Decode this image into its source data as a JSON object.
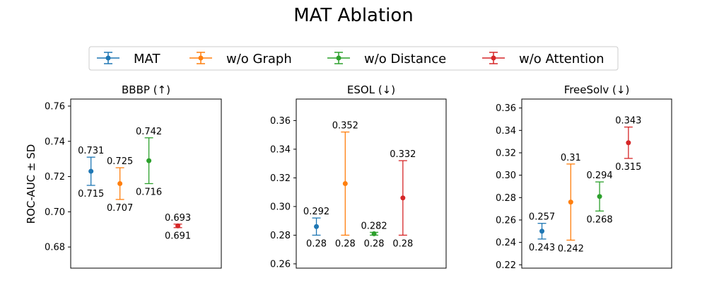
{
  "figure_title": "MAT Ablation",
  "ylabel": "ROC-AUC ± SD",
  "legend": [
    {
      "name": "MAT",
      "color": "#1f77b4"
    },
    {
      "name": "w/o Graph",
      "color": "#ff7f0e"
    },
    {
      "name": "w/o Distance",
      "color": "#2ca02c"
    },
    {
      "name": "w/o Attention",
      "color": "#d62728"
    }
  ],
  "chart_data": [
    {
      "type": "errorbar",
      "title": "BBBP (↑)",
      "ylim": [
        0.668,
        0.764
      ],
      "yticks": [
        0.68,
        0.7,
        0.72,
        0.74,
        0.76
      ],
      "ytick_labels": [
        "0.68",
        "0.70",
        "0.72",
        "0.74",
        "0.76"
      ],
      "series": [
        {
          "name": "MAT",
          "mean": 0.723,
          "upper": 0.731,
          "lower": 0.715,
          "upper_label": "0.731",
          "lower_label": "0.715"
        },
        {
          "name": "w/o Graph",
          "mean": 0.716,
          "upper": 0.725,
          "lower": 0.707,
          "upper_label": "0.725",
          "lower_label": "0.707"
        },
        {
          "name": "w/o Distance",
          "mean": 0.729,
          "upper": 0.742,
          "lower": 0.716,
          "upper_label": "0.742",
          "lower_label": "0.716"
        },
        {
          "name": "w/o Attention",
          "mean": 0.692,
          "upper": 0.693,
          "lower": 0.691,
          "upper_label": "0.693",
          "lower_label": "0.691"
        }
      ]
    },
    {
      "type": "errorbar",
      "title": "ESOL (↓)",
      "ylim": [
        0.257,
        0.375
      ],
      "yticks": [
        0.26,
        0.28,
        0.3,
        0.32,
        0.34,
        0.36
      ],
      "ytick_labels": [
        "0.26",
        "0.28",
        "0.30",
        "0.32",
        "0.34",
        "0.36"
      ],
      "series": [
        {
          "name": "MAT",
          "mean": 0.286,
          "upper": 0.292,
          "lower": 0.28,
          "upper_label": "0.292",
          "lower_label": "0.28"
        },
        {
          "name": "w/o Graph",
          "mean": 0.316,
          "upper": 0.352,
          "lower": 0.28,
          "upper_label": "0.352",
          "lower_label": "0.28"
        },
        {
          "name": "w/o Distance",
          "mean": 0.281,
          "upper": 0.282,
          "lower": 0.28,
          "upper_label": "0.282",
          "lower_label": "0.28"
        },
        {
          "name": "w/o Attention",
          "mean": 0.306,
          "upper": 0.332,
          "lower": 0.28,
          "upper_label": "0.332",
          "lower_label": "0.28"
        }
      ]
    },
    {
      "type": "errorbar",
      "title": "FreeSolv (↓)",
      "ylim": [
        0.217,
        0.368
      ],
      "yticks": [
        0.22,
        0.24,
        0.26,
        0.28,
        0.3,
        0.32,
        0.34,
        0.36
      ],
      "ytick_labels": [
        "0.22",
        "0.24",
        "0.26",
        "0.28",
        "0.30",
        "0.32",
        "0.34",
        "0.36"
      ],
      "series": [
        {
          "name": "MAT",
          "mean": 0.25,
          "upper": 0.257,
          "lower": 0.243,
          "upper_label": "0.257",
          "lower_label": "0.243"
        },
        {
          "name": "w/o Graph",
          "mean": 0.276,
          "upper": 0.31,
          "lower": 0.242,
          "upper_label": "0.31",
          "lower_label": "0.242"
        },
        {
          "name": "w/o Distance",
          "mean": 0.281,
          "upper": 0.294,
          "lower": 0.268,
          "upper_label": "0.294",
          "lower_label": "0.268"
        },
        {
          "name": "w/o Attention",
          "mean": 0.329,
          "upper": 0.343,
          "lower": 0.315,
          "upper_label": "0.343",
          "lower_label": "0.315"
        }
      ]
    }
  ]
}
